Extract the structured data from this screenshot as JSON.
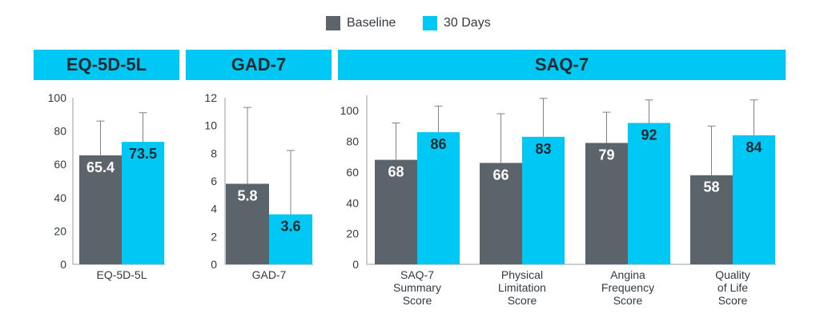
{
  "colors": {
    "baseline": "#5b636b",
    "days30": "#00c8f4",
    "header": "#00c8f4",
    "axis": "#9a9fa4"
  },
  "legend": {
    "baseline": "Baseline",
    "days30": "30 Days"
  },
  "chart_data": [
    {
      "type": "bar",
      "title": "EQ-5D-5L",
      "categories": [
        "EQ-5D-5L"
      ],
      "ylim": [
        0,
        100
      ],
      "yticks": [
        0,
        20,
        40,
        60,
        80,
        100
      ],
      "series": [
        {
          "name": "Baseline",
          "values": [
            65.4
          ],
          "error_upper": [
            86
          ],
          "labels": [
            "65.4"
          ]
        },
        {
          "name": "30 Days",
          "values": [
            73.5
          ],
          "error_upper": [
            91
          ],
          "labels": [
            "73.5"
          ]
        }
      ]
    },
    {
      "type": "bar",
      "title": "GAD-7",
      "categories": [
        "GAD-7"
      ],
      "ylim": [
        0,
        12
      ],
      "yticks": [
        0,
        2,
        4,
        6,
        8,
        10,
        12
      ],
      "series": [
        {
          "name": "Baseline",
          "values": [
            5.8
          ],
          "error_upper": [
            11.3
          ],
          "labels": [
            "5.8"
          ]
        },
        {
          "name": "30 Days",
          "values": [
            3.6
          ],
          "error_upper": [
            8.2
          ],
          "labels": [
            "3.6"
          ]
        }
      ]
    },
    {
      "type": "bar",
      "title": "SAQ-7",
      "categories": [
        "SAQ-7 Summary Score",
        "Physical Limitation Score",
        "Angina Frequency Score",
        "Quality of Life Score"
      ],
      "category_lines": [
        [
          "SAQ-7",
          "Summary",
          "Score"
        ],
        [
          "Physical",
          "Limitation",
          "Score"
        ],
        [
          "Angina",
          "Frequency",
          "Score"
        ],
        [
          "Quality",
          "of Life",
          "Score"
        ]
      ],
      "ylim": [
        0,
        110
      ],
      "yticks": [
        0,
        20,
        40,
        60,
        80,
        100
      ],
      "series": [
        {
          "name": "Baseline",
          "values": [
            68,
            66,
            79,
            58
          ],
          "error_upper": [
            92,
            98,
            99,
            90
          ],
          "labels": [
            "68",
            "66",
            "79",
            "58"
          ]
        },
        {
          "name": "30 Days",
          "values": [
            86,
            83,
            92,
            84
          ],
          "error_upper": [
            103,
            108,
            107,
            107
          ],
          "labels": [
            "86",
            "83",
            "92",
            "84"
          ]
        }
      ]
    }
  ]
}
